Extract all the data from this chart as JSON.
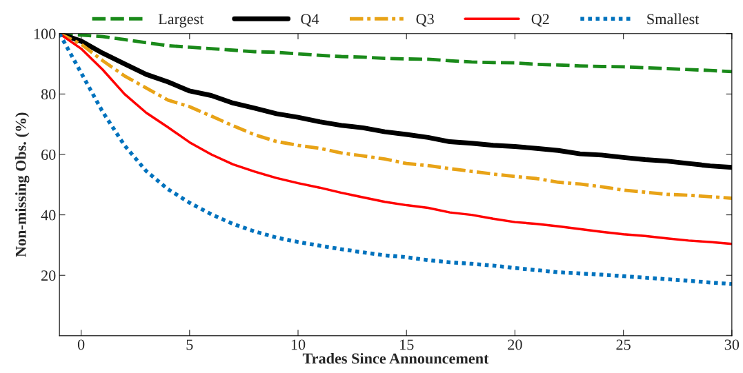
{
  "chart_data": {
    "type": "line",
    "xlabel": "Trades Since Announcement",
    "ylabel": "Non-missing Obs. (%)",
    "x": [
      -1,
      0,
      1,
      2,
      3,
      4,
      5,
      6,
      7,
      8,
      9,
      10,
      11,
      12,
      13,
      14,
      15,
      16,
      17,
      18,
      19,
      20,
      21,
      22,
      23,
      24,
      25,
      26,
      27,
      28,
      29,
      30
    ],
    "series": [
      {
        "name": "Largest",
        "color": "#1a8a1a",
        "line_style": "dashed",
        "values": [
          100,
          99.5,
          99,
          98,
          97,
          96,
          95.5,
          95,
          94.5,
          94,
          93.8,
          93.3,
          92.8,
          92.4,
          92.2,
          91.8,
          91.6,
          91.5,
          91,
          90.6,
          90.4,
          90.3,
          89.8,
          89.6,
          89.3,
          89.1,
          89,
          88.7,
          88.4,
          88.1,
          87.8,
          87.4
        ]
      },
      {
        "name": "Q4",
        "color": "#000000",
        "line_style": "solid",
        "values": [
          100,
          97.5,
          93.5,
          90,
          86.5,
          84,
          81,
          79.5,
          77,
          75.3,
          73.5,
          72.3,
          70.8,
          69.6,
          68.8,
          67.5,
          66.6,
          65.6,
          64.2,
          63.7,
          63,
          62.6,
          62,
          61.3,
          60.2,
          59.8,
          59,
          58.3,
          57.8,
          57,
          56.2,
          55.7
        ]
      },
      {
        "name": "Q3",
        "color": "#e8a317",
        "line_style": "dashdot",
        "values": [
          100,
          96.5,
          91,
          86,
          82,
          78,
          75.8,
          72.7,
          69.5,
          66.5,
          64.3,
          63,
          62,
          60.5,
          59.5,
          58.5,
          57,
          56.3,
          55.3,
          54.4,
          53.5,
          52.7,
          52,
          50.8,
          50.2,
          49.3,
          48.2,
          47.5,
          46.8,
          46.5,
          46,
          45.5
        ]
      },
      {
        "name": "Q2",
        "color": "#ff0000",
        "line_style": "solid",
        "values": [
          100,
          95,
          88,
          80,
          73.8,
          69,
          64,
          60,
          56.7,
          54.3,
          52.2,
          50.5,
          49,
          47.3,
          45.8,
          44.3,
          43.2,
          42.3,
          40.8,
          40,
          38.7,
          37.6,
          37,
          36.2,
          35.3,
          34.4,
          33.6,
          33,
          32.2,
          31.5,
          31,
          30.4
        ]
      },
      {
        "name": "Smallest",
        "color": "#0072bd",
        "line_style": "dotted",
        "values": [
          100,
          87,
          74,
          63,
          54.5,
          48.5,
          44,
          40.2,
          37,
          34.5,
          32.5,
          31,
          29.8,
          28.6,
          27.6,
          26.6,
          26,
          25,
          24.3,
          23.8,
          23.2,
          22.4,
          21.7,
          21,
          20.6,
          20.2,
          19.7,
          19.2,
          18.7,
          18.2,
          17.6,
          17.1
        ]
      }
    ],
    "xlim": [
      -1,
      30
    ],
    "xticks": [
      0,
      5,
      10,
      15,
      20,
      25,
      30
    ],
    "ylim": [
      0,
      100
    ],
    "yticks": [
      20,
      40,
      60,
      80,
      100
    ],
    "grid": false,
    "legend": "top"
  }
}
